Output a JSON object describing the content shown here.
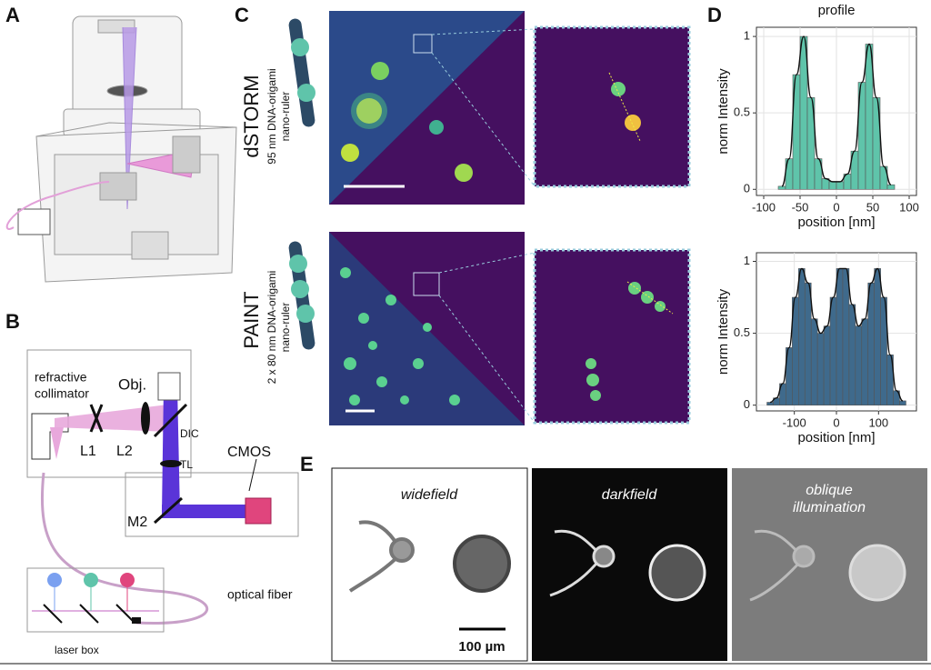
{
  "panel_a": {
    "letter": "A"
  },
  "panel_b": {
    "letter": "B",
    "collimator": [
      "refractive",
      "collimator"
    ],
    "objective": "Obj.",
    "l1": "L1",
    "l2": "L2",
    "dic": "DIC",
    "tl": "TL",
    "cmos": "CMOS",
    "m2": "M2",
    "fiber": "optical fiber",
    "laser_box": "laser box"
  },
  "panel_c": {
    "letter": "C",
    "rows": [
      {
        "method": "dSTORM",
        "sample": [
          "95 nm DNA-origami",
          "nano-ruler"
        ]
      },
      {
        "method": "PAINT",
        "sample": [
          "2 x 80 nm DNA-origami",
          "nano-ruler"
        ]
      }
    ]
  },
  "panel_d": {
    "letter": "D"
  },
  "chart_data": [
    {
      "type": "histogram",
      "title": "profile",
      "x_label": "position [nm]",
      "y_label": "norm Intensity",
      "color": "#5fc4aa",
      "grid": true,
      "bins": [
        -80,
        -70,
        -60,
        -50,
        -40,
        -30,
        -20,
        -10,
        0,
        10,
        20,
        30,
        40,
        50,
        60,
        70,
        80
      ],
      "values": [
        0.02,
        0.2,
        0.75,
        1.0,
        0.6,
        0.2,
        0.07,
        0.05,
        0.05,
        0.1,
        0.25,
        0.7,
        0.95,
        0.6,
        0.15,
        0.03
      ],
      "xlim": [
        -110,
        110
      ],
      "xticks": [
        -100,
        -50,
        0,
        50,
        100
      ],
      "ylim": [
        -0.04,
        1.06
      ],
      "yticks": [
        0,
        0.5,
        1
      ]
    },
    {
      "type": "histogram",
      "x_label": "position [nm]",
      "y_label": "norm Intensity",
      "color": "#3f6a8c",
      "grid": true,
      "bins": [
        -165,
        -150,
        -135,
        -120,
        -105,
        -90,
        -75,
        -60,
        -45,
        -30,
        -15,
        0,
        15,
        30,
        45,
        60,
        75,
        90,
        105,
        120,
        135,
        150,
        165
      ],
      "values": [
        0.02,
        0.05,
        0.15,
        0.4,
        0.75,
        0.95,
        0.85,
        0.6,
        0.5,
        0.55,
        0.75,
        0.95,
        0.95,
        0.7,
        0.55,
        0.6,
        0.85,
        0.95,
        0.75,
        0.35,
        0.1,
        0.03
      ],
      "xlim": [
        -190,
        190
      ],
      "xticks": [
        -100,
        0,
        100
      ],
      "ylim": [
        -0.04,
        1.06
      ],
      "yticks": [
        0,
        0.5,
        1
      ]
    }
  ],
  "panel_e": {
    "letter": "E",
    "images": [
      [
        "widefield"
      ],
      [
        "darkfield"
      ],
      [
        "oblique",
        "illumination"
      ]
    ],
    "scale_bar": "100 µm"
  }
}
